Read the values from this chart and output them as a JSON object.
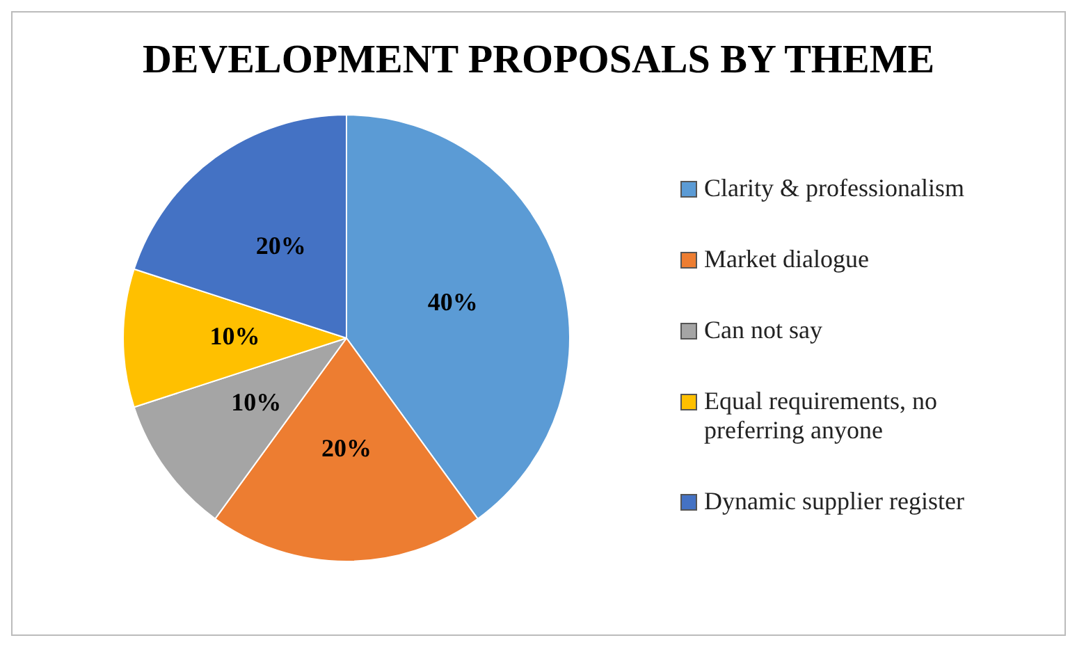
{
  "chart_data": {
    "type": "pie",
    "title": "DEVELOPMENT PROPOSALS BY THEME",
    "categories": [
      "Clarity & professionalism",
      "Market dialogue",
      "Can not say",
      "Equal requirements, no preferring anyone",
      "Dynamic supplier register"
    ],
    "values": [
      40,
      20,
      10,
      10,
      20
    ],
    "colors": [
      "#5b9bd5",
      "#ed7d31",
      "#a5a5a5",
      "#ffc000",
      "#4472c4"
    ],
    "value_labels": [
      "40%",
      "20%",
      "10%",
      "10%",
      "20%"
    ],
    "legend": "right"
  }
}
